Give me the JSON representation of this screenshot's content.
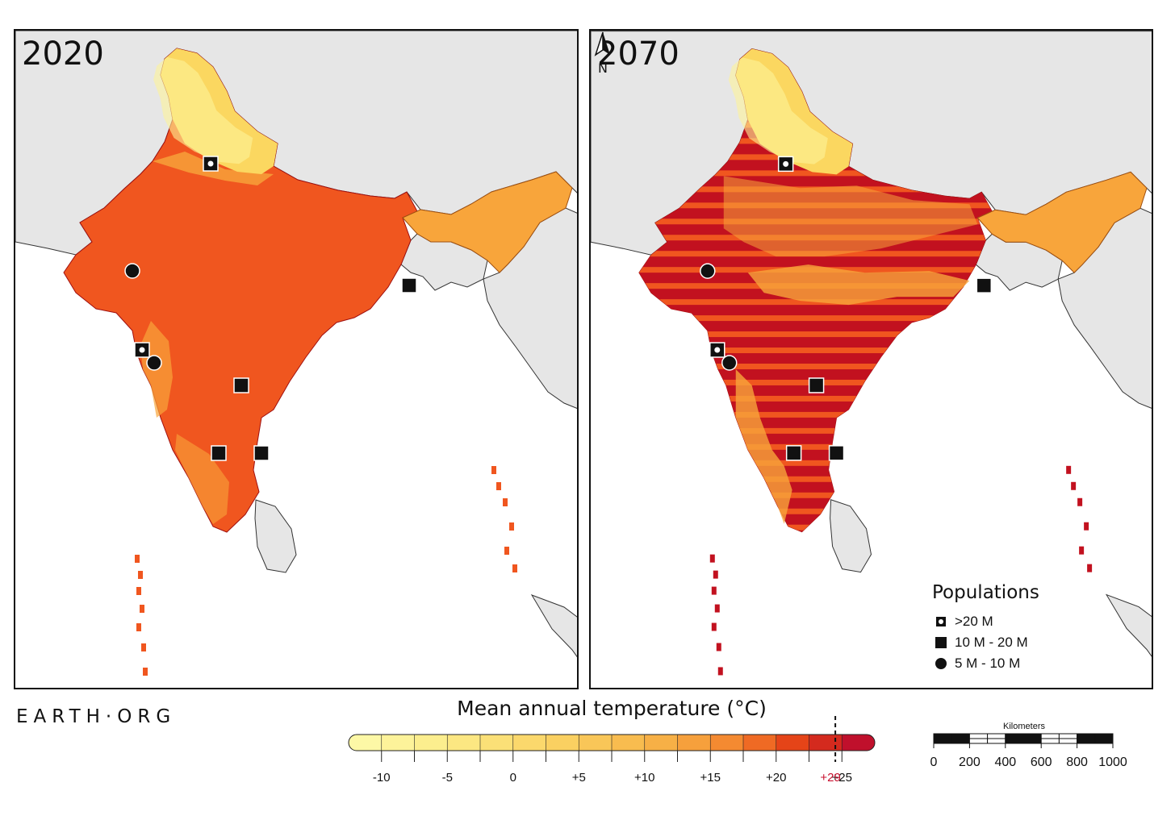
{
  "panels": [
    {
      "year": "2020"
    },
    {
      "year": "2070"
    }
  ],
  "north_arrow": {
    "label": "N"
  },
  "populations_legend": {
    "title": "Populations",
    "items": [
      {
        "symbol": "square-dot",
        "label": ">20 M"
      },
      {
        "symbol": "square",
        "label": "10 M - 20 M"
      },
      {
        "symbol": "circle",
        "label": "5 M - 10 M"
      }
    ]
  },
  "logo": {
    "text": "EARTH·ORG"
  },
  "colorbar": {
    "title": "Mean annual temperature (°C)",
    "ticks": [
      "-10",
      "-5",
      "0",
      "+5",
      "+10",
      "+15",
      "+20",
      "+25"
    ],
    "threshold_label": "+29",
    "colors": [
      "#fdf8a6",
      "#fdf39a",
      "#fcee8e",
      "#fce782",
      "#fbe077",
      "#fbd86c",
      "#fad061",
      "#f9c658",
      "#f8bc4f",
      "#f7b046",
      "#f6a03c",
      "#f48a31",
      "#ef6a24",
      "#e54418",
      "#d42a1e",
      "#c0102c"
    ]
  },
  "scale_bar": {
    "title": "Kilometers",
    "ticks": [
      "0",
      "200",
      "400",
      "600",
      "800",
      "1000"
    ]
  },
  "map_colors": {
    "land_outside": "#e6e6e6",
    "hot_2020": "#f0561f",
    "warm": "#f8a53b",
    "cool": "#fbd760",
    "coldest": "#fdf39a",
    "hot_2070": "#c2111f"
  }
}
